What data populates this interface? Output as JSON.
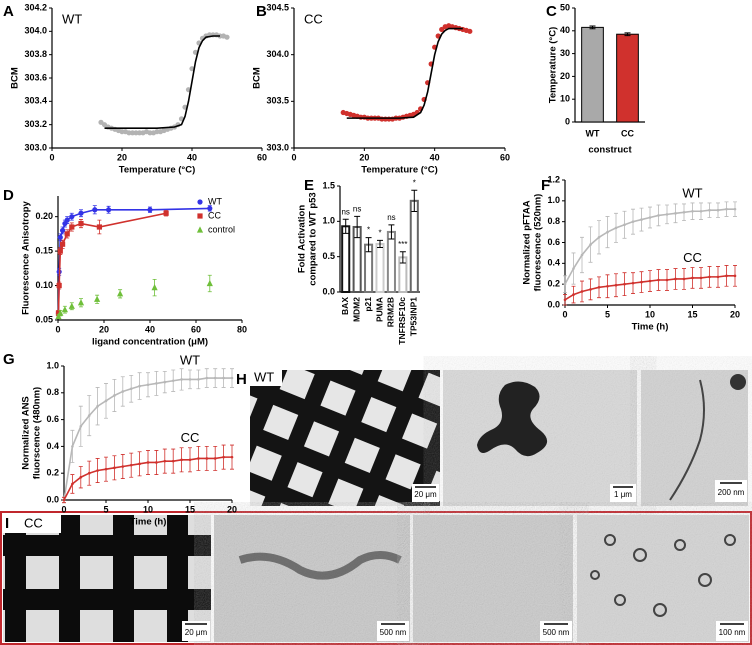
{
  "chart_data": [
    {
      "panel": "A",
      "type": "scatter",
      "label": "WT",
      "xlabel": "Temperature (°C)",
      "ylabel": "BCM",
      "xlim": [
        0,
        60
      ],
      "xticks": [
        0,
        20,
        40,
        60
      ],
      "ylim": [
        303.0,
        304.2
      ],
      "yticks": [
        {
          "value": 303.0,
          "label": "303.0"
        },
        303.2,
        303.4,
        303.6,
        303.8,
        {
          "value": 304.0,
          "label": "304.0"
        },
        304.2
      ],
      "series": [
        {
          "color": "#b3b3b3",
          "mode": "markers",
          "marker": "circle",
          "x": [
            14,
            15,
            16,
            17,
            18,
            19,
            20,
            21,
            22,
            23,
            24,
            25,
            26,
            27,
            28,
            29,
            30,
            31,
            32,
            33,
            34,
            35,
            36,
            37,
            38,
            39,
            40,
            41,
            42,
            43,
            44,
            45,
            46,
            47,
            48,
            49,
            50
          ],
          "values": [
            303.22,
            303.2,
            303.18,
            303.17,
            303.16,
            303.15,
            303.14,
            303.14,
            303.13,
            303.13,
            303.13,
            303.13,
            303.13,
            303.14,
            303.13,
            303.13,
            303.14,
            303.14,
            303.15,
            303.16,
            303.17,
            303.18,
            303.2,
            303.25,
            303.35,
            303.5,
            303.68,
            303.82,
            303.9,
            303.94,
            303.96,
            303.97,
            303.97,
            303.97,
            303.96,
            303.96,
            303.95
          ]
        },
        {
          "color": "#000000",
          "mode": "lines",
          "x": [
            15,
            20,
            25,
            30,
            35,
            37,
            38,
            39,
            40,
            41,
            42,
            43,
            44,
            46,
            48
          ],
          "values": [
            303.17,
            303.17,
            303.17,
            303.17,
            303.18,
            303.2,
            303.27,
            303.4,
            303.57,
            303.74,
            303.86,
            303.92,
            303.95,
            303.96,
            303.96
          ]
        }
      ]
    },
    {
      "panel": "B",
      "type": "scatter",
      "label": "CC",
      "xlabel": "Temperature (°C)",
      "ylabel": "BCM",
      "xlim": [
        0,
        60
      ],
      "xticks": [
        0,
        20,
        40,
        60
      ],
      "ylim": [
        303.0,
        304.5
      ],
      "yticks": [
        {
          "value": 303.0,
          "label": "303.0"
        },
        303.5,
        {
          "value": 304.0,
          "label": "304.0"
        },
        304.5
      ],
      "series": [
        {
          "color": "#d0312d",
          "mode": "markers",
          "marker": "circle",
          "x": [
            14,
            15,
            16,
            17,
            18,
            19,
            20,
            21,
            22,
            23,
            24,
            25,
            26,
            27,
            28,
            29,
            30,
            31,
            32,
            33,
            34,
            35,
            36,
            37,
            38,
            39,
            40,
            41,
            42,
            43,
            44,
            45,
            46,
            47,
            48,
            49,
            50
          ],
          "values": [
            303.38,
            303.37,
            303.36,
            303.35,
            303.34,
            303.33,
            303.33,
            303.32,
            303.32,
            303.32,
            303.32,
            303.31,
            303.31,
            303.31,
            303.31,
            303.32,
            303.32,
            303.33,
            303.34,
            303.35,
            303.36,
            303.38,
            303.42,
            303.52,
            303.7,
            303.9,
            304.08,
            304.2,
            304.27,
            304.3,
            304.31,
            304.3,
            304.29,
            304.28,
            304.27,
            304.26,
            304.25
          ]
        },
        {
          "color": "#000000",
          "mode": "lines",
          "x": [
            15,
            20,
            25,
            30,
            34,
            36,
            37,
            38,
            39,
            40,
            41,
            42,
            43,
            44,
            46,
            48
          ],
          "values": [
            303.32,
            303.32,
            303.32,
            303.32,
            303.33,
            303.38,
            303.46,
            303.6,
            303.8,
            304.0,
            304.14,
            304.22,
            304.26,
            304.28,
            304.28,
            304.28
          ]
        }
      ]
    },
    {
      "panel": "C",
      "type": "bar",
      "xlabel": "construct",
      "ylabel": "Temperature (°C)",
      "categories": [
        "WT",
        "CC"
      ],
      "values": [
        41.5,
        38.5
      ],
      "errors": [
        0.6,
        0.6
      ],
      "colors": [
        "#a9a9a9",
        "#d0312d"
      ],
      "ylim": [
        0,
        50
      ],
      "yticks": [
        0,
        10,
        20,
        30,
        40,
        50
      ]
    },
    {
      "panel": "D",
      "type": "scatter",
      "xlabel": "ligand concentration (μM)",
      "ylabel": "Fluorescence Anisotropy",
      "legend": "upper right",
      "xlim": [
        0,
        80
      ],
      "xticks": [
        0,
        20,
        40,
        60,
        80
      ],
      "ylim": [
        0.05,
        0.23
      ],
      "yticks": [
        0.05,
        {
          "value": 0.1,
          "label": "0.10"
        },
        0.15,
        {
          "value": 0.2,
          "label": "0.20"
        }
      ],
      "series": [
        {
          "name": "WT",
          "color": "#3333e6",
          "mode": "lines+markers+errors",
          "marker": "circle",
          "x": [
            0.2,
            0.5,
            1,
            2,
            3,
            4,
            6,
            10,
            16,
            22,
            40,
            66
          ],
          "values": [
            0.06,
            0.12,
            0.17,
            0.18,
            0.19,
            0.195,
            0.2,
            0.205,
            0.21,
            0.21,
            0.21,
            0.212
          ],
          "errors": [
            0.004,
            0.005,
            0.005,
            0.005,
            0.005,
            0.005,
            0.005,
            0.005,
            0.006,
            0.005,
            0.004,
            0.004
          ]
        },
        {
          "name": "CC",
          "color": "#d0312d",
          "mode": "lines+markers+errors",
          "marker": "square",
          "x": [
            0.2,
            0.5,
            1,
            2,
            4,
            6,
            10,
            18,
            47
          ],
          "values": [
            0.06,
            0.1,
            0.15,
            0.16,
            0.175,
            0.185,
            0.19,
            0.185,
            0.205
          ],
          "errors": [
            0.004,
            0.005,
            0.005,
            0.006,
            0.006,
            0.006,
            0.006,
            0.01,
            0.004
          ]
        },
        {
          "name": "control",
          "color": "#6fbf3a",
          "mode": "markers+errors",
          "marker": "triangle",
          "x": [
            0.2,
            1,
            3,
            6,
            10,
            17,
            27,
            42,
            66
          ],
          "values": [
            0.055,
            0.06,
            0.065,
            0.07,
            0.075,
            0.08,
            0.088,
            0.097,
            0.103
          ],
          "errors": [
            0.003,
            0.004,
            0.005,
            0.005,
            0.006,
            0.006,
            0.006,
            0.012,
            0.012
          ]
        }
      ]
    },
    {
      "panel": "E",
      "type": "bar",
      "ylabel": [
        "Fold Activation",
        "compared to WT p53"
      ],
      "xtick_rotation": 90,
      "categories": [
        "BAX",
        "MDM2",
        "p21",
        "PUMA",
        "RRM2B",
        "TNFRSF10c",
        "TP53INP1"
      ],
      "values": [
        0.93,
        0.92,
        0.67,
        0.68,
        0.85,
        0.49,
        1.29
      ],
      "errors": [
        0.1,
        0.15,
        0.1,
        0.05,
        0.1,
        0.08,
        0.15
      ],
      "annotations": [
        "ns",
        "ns",
        "*",
        "*",
        "ns",
        "***",
        "*"
      ],
      "edgecolors": [
        "#111111",
        "#555555",
        "#777777",
        "#cccccc",
        "#888888",
        "#bbbbbb",
        "#666666"
      ],
      "ylim": [
        0,
        1.5
      ],
      "yticks": [
        {
          "value": 0,
          "label": "0.0"
        },
        0.5,
        {
          "value": 1,
          "label": "1.0"
        },
        1.5
      ]
    },
    {
      "panel": "F",
      "type": "scatter",
      "xlabel": "Time (h)",
      "ylabel": [
        "Normalized pFTAA",
        "fluorescence (520nm)"
      ],
      "xlim": [
        0,
        20
      ],
      "xticks": [
        0,
        5,
        10,
        15,
        20
      ],
      "ylim": [
        0,
        1.2
      ],
      "yticks": [
        {
          "value": 0,
          "label": "0.0"
        },
        0.2,
        0.4,
        0.6,
        0.8,
        {
          "value": 1,
          "label": "1.0"
        },
        1.2
      ],
      "series": [
        {
          "name": "WT",
          "color": "#b8b8b8",
          "mode": "lines+markers+errors",
          "marker": "circle",
          "x": [
            0,
            1,
            2,
            3,
            4,
            5,
            6,
            7,
            8,
            9,
            10,
            11,
            12,
            13,
            14,
            15,
            16,
            17,
            18,
            19,
            20
          ],
          "values": [
            0.2,
            0.35,
            0.48,
            0.58,
            0.65,
            0.7,
            0.74,
            0.77,
            0.8,
            0.82,
            0.84,
            0.86,
            0.87,
            0.88,
            0.89,
            0.9,
            0.9,
            0.91,
            0.91,
            0.92,
            0.92
          ],
          "errors": [
            0.08,
            0.15,
            0.17,
            0.17,
            0.16,
            0.15,
            0.14,
            0.13,
            0.12,
            0.11,
            0.1,
            0.1,
            0.09,
            0.09,
            0.08,
            0.08,
            0.08,
            0.07,
            0.07,
            0.07,
            0.07
          ]
        },
        {
          "name": "CC",
          "color": "#d0312d",
          "mode": "lines+markers+errors",
          "marker": "circle",
          "x": [
            0,
            1,
            2,
            3,
            4,
            5,
            6,
            7,
            8,
            9,
            10,
            11,
            12,
            13,
            14,
            15,
            16,
            17,
            18,
            19,
            20
          ],
          "values": [
            0.05,
            0.1,
            0.13,
            0.15,
            0.17,
            0.18,
            0.19,
            0.2,
            0.21,
            0.22,
            0.23,
            0.24,
            0.24,
            0.25,
            0.25,
            0.26,
            0.26,
            0.27,
            0.27,
            0.28,
            0.28
          ],
          "errors": [
            0.05,
            0.08,
            0.1,
            0.1,
            0.1,
            0.11,
            0.11,
            0.11,
            0.1,
            0.1,
            0.1,
            0.1,
            0.1,
            0.1,
            0.1,
            0.1,
            0.1,
            0.1,
            0.1,
            0.1,
            0.1
          ]
        }
      ]
    },
    {
      "panel": "G",
      "type": "scatter",
      "xlabel": "Time (h)",
      "ylabel": [
        "Normalized ANS",
        "fluorscence (480nm)"
      ],
      "xlim": [
        0,
        20
      ],
      "xticks": [
        0,
        5,
        10,
        15,
        20
      ],
      "ylim": [
        0,
        1.0
      ],
      "yticks": [
        {
          "value": 0,
          "label": "0.0"
        },
        0.2,
        0.4,
        0.6,
        0.8,
        {
          "value": 1,
          "label": "1.0"
        }
      ],
      "series": [
        {
          "name": "WT",
          "color": "#b8b8b8",
          "mode": "lines+markers+errors",
          "marker": "circle",
          "x": [
            0,
            1,
            2,
            3,
            4,
            5,
            6,
            7,
            8,
            9,
            10,
            11,
            12,
            13,
            14,
            15,
            16,
            17,
            18,
            19,
            20
          ],
          "values": [
            0.0,
            0.4,
            0.55,
            0.63,
            0.7,
            0.74,
            0.78,
            0.81,
            0.83,
            0.85,
            0.86,
            0.87,
            0.88,
            0.89,
            0.9,
            0.9,
            0.9,
            0.91,
            0.91,
            0.91,
            0.91
          ],
          "errors": [
            0.02,
            0.12,
            0.15,
            0.15,
            0.14,
            0.13,
            0.12,
            0.11,
            0.1,
            0.1,
            0.09,
            0.09,
            0.08,
            0.08,
            0.08,
            0.07,
            0.07,
            0.07,
            0.07,
            0.07,
            0.07
          ]
        },
        {
          "name": "CC",
          "color": "#d0312d",
          "mode": "lines+markers+errors",
          "marker": "circle",
          "x": [
            0,
            1,
            2,
            3,
            4,
            5,
            6,
            7,
            8,
            9,
            10,
            11,
            12,
            13,
            14,
            15,
            16,
            17,
            18,
            19,
            20
          ],
          "values": [
            0.0,
            0.12,
            0.17,
            0.2,
            0.22,
            0.23,
            0.24,
            0.25,
            0.26,
            0.27,
            0.28,
            0.28,
            0.29,
            0.29,
            0.3,
            0.3,
            0.31,
            0.31,
            0.31,
            0.32,
            0.32
          ],
          "errors": [
            0.02,
            0.07,
            0.08,
            0.09,
            0.09,
            0.09,
            0.09,
            0.09,
            0.09,
            0.09,
            0.09,
            0.09,
            0.09,
            0.09,
            0.09,
            0.09,
            0.09,
            0.09,
            0.09,
            0.09,
            0.09
          ]
        }
      ]
    }
  ],
  "images": {
    "H": {
      "panel": "H",
      "label": "WT",
      "scale_bars": [
        "20 μm",
        "1 μm",
        "200 nm"
      ]
    },
    "I": {
      "panel": "I",
      "label": "CC",
      "scale_bars": [
        "20 μm",
        "500 nm",
        "500 nm",
        "100 nm"
      ]
    }
  }
}
